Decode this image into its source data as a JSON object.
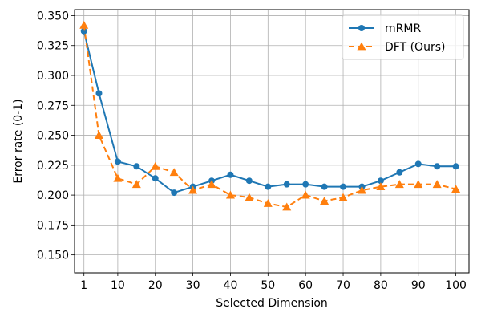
{
  "chart_data": {
    "type": "line",
    "title": "",
    "xlabel": "Selected Dimension",
    "ylabel": "Error rate (0-1)",
    "x": [
      1,
      5,
      10,
      15,
      20,
      25,
      30,
      35,
      40,
      45,
      50,
      55,
      60,
      65,
      70,
      75,
      80,
      85,
      90,
      95,
      100
    ],
    "xticks": [
      1,
      10,
      20,
      30,
      40,
      50,
      60,
      70,
      80,
      90,
      100
    ],
    "xtick_labels": [
      "1",
      "10",
      "20",
      "30",
      "40",
      "50",
      "60",
      "70",
      "80",
      "90",
      "100"
    ],
    "xlim": [
      -1.5,
      103.5
    ],
    "yticks": [
      0.15,
      0.175,
      0.2,
      0.225,
      0.25,
      0.275,
      0.3,
      0.325,
      0.35
    ],
    "ytick_labels": [
      "0.150",
      "0.175",
      "0.200",
      "0.225",
      "0.250",
      "0.275",
      "0.300",
      "0.325",
      "0.350"
    ],
    "ylim": [
      0.135,
      0.355
    ],
    "grid": true,
    "legend_position": "top-right",
    "series": [
      {
        "name": "mRMR",
        "color": "#1f77b4",
        "line_style": "solid",
        "marker": "circle",
        "values": [
          0.337,
          0.285,
          0.228,
          0.224,
          0.214,
          0.202,
          0.207,
          0.212,
          0.217,
          0.212,
          0.207,
          0.209,
          0.209,
          0.207,
          0.207,
          0.207,
          0.212,
          0.219,
          0.226,
          0.224,
          0.224
        ]
      },
      {
        "name": "DFT (Ours)",
        "color": "#ff7f0e",
        "line_style": "dashed",
        "marker": "triangle",
        "values": [
          0.342,
          0.25,
          0.214,
          0.209,
          0.224,
          0.219,
          0.204,
          0.209,
          0.2,
          0.198,
          0.193,
          0.19,
          0.2,
          0.195,
          0.198,
          0.204,
          0.207,
          0.209,
          0.209,
          0.209,
          0.205
        ]
      }
    ]
  }
}
